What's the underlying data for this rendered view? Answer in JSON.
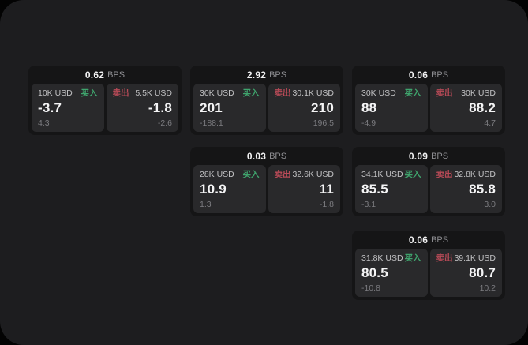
{
  "labels": {
    "bps_unit": "BPS",
    "buy": "买入",
    "sell": "卖出"
  },
  "colors": {
    "page_bg": "#030303",
    "window_bg": "#1d1d1f",
    "card_bg": "#151516",
    "panel_bg": "#29292b",
    "buy": "#3fa46d",
    "sell": "#b84a57",
    "value_text": "#f4f4f5",
    "muted_text": "#7c7c80"
  },
  "cards": [
    {
      "bps": "0.62",
      "buy": {
        "size": "10K USD",
        "value": "-3.7",
        "sub": "4.3"
      },
      "sell": {
        "size": "5.5K USD",
        "value": "-1.8",
        "sub": "-2.6"
      }
    },
    {
      "bps": "2.92",
      "buy": {
        "size": "30K USD",
        "value": "201",
        "sub": "-188.1"
      },
      "sell": {
        "size": "30.1K USD",
        "value": "210",
        "sub": "196.5"
      }
    },
    {
      "bps": "0.06",
      "buy": {
        "size": "30K USD",
        "value": "88",
        "sub": "-4.9"
      },
      "sell": {
        "size": "30K USD",
        "value": "88.2",
        "sub": "4.7"
      }
    },
    {
      "bps": "0.03",
      "buy": {
        "size": "28K USD",
        "value": "10.9",
        "sub": "1.3"
      },
      "sell": {
        "size": "32.6K USD",
        "value": "11",
        "sub": "-1.8"
      }
    },
    {
      "bps": "0.09",
      "buy": {
        "size": "34.1K USD",
        "value": "85.5",
        "sub": "-3.1"
      },
      "sell": {
        "size": "32.8K USD",
        "value": "85.8",
        "sub": "3.0"
      }
    },
    {
      "bps": "0.06",
      "buy": {
        "size": "31.8K USD",
        "value": "80.5",
        "sub": "-10.8"
      },
      "sell": {
        "size": "39.1K USD",
        "value": "80.7",
        "sub": "10.2"
      }
    }
  ]
}
